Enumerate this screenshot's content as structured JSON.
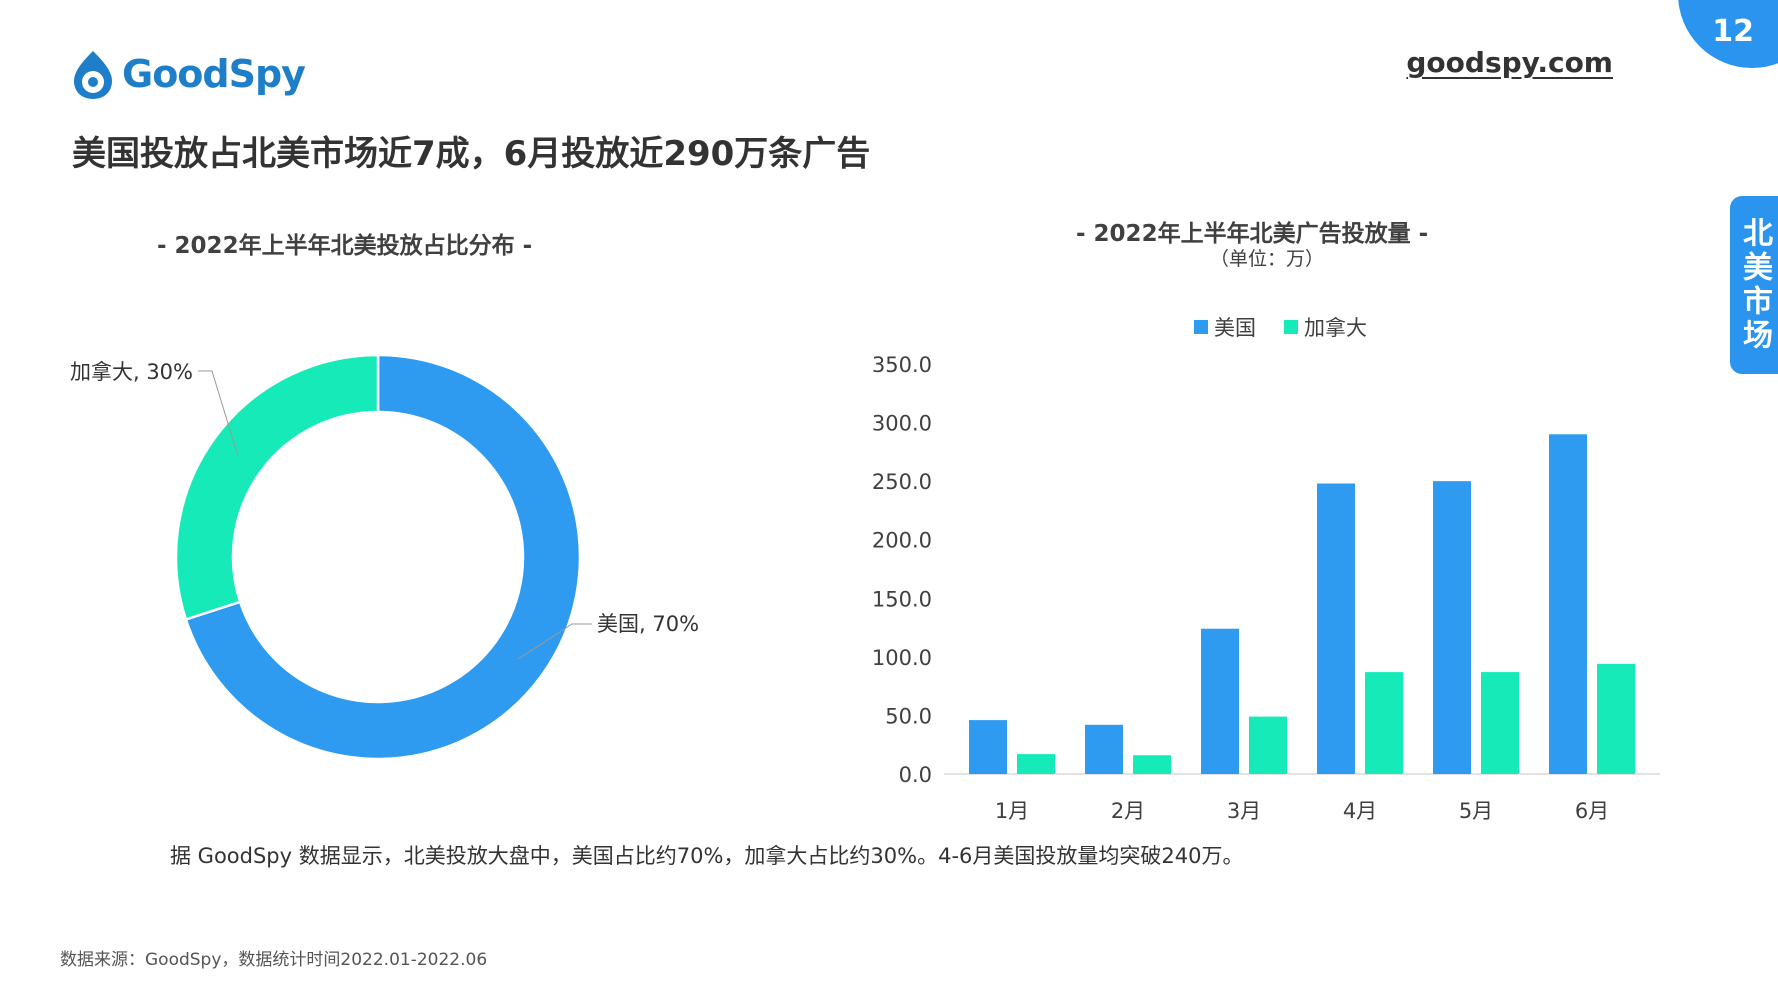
{
  "header": {
    "brand": "GoodSpy",
    "site_link": "goodspy.com",
    "page_number": "12",
    "side_tab": "北美市场",
    "headline": "美国投放占北美市场近7成，6月投放近290万条广告"
  },
  "colors": {
    "us": "#2e9bf0",
    "canada": "#16eab8",
    "accent": "#2a94ee"
  },
  "chart_data": [
    {
      "type": "pie",
      "title": "- 2022年上半年北美投放占比分布 -",
      "donut": true,
      "slices": [
        {
          "name": "美国",
          "label": "美国, 70%",
          "value": 70
        },
        {
          "name": "加拿大",
          "label": "加拿大, 30%",
          "value": 30
        }
      ]
    },
    {
      "type": "bar",
      "title": "- 2022年上半年北美广告投放量 -",
      "subtitle": "（单位：万）",
      "categories": [
        "1月",
        "2月",
        "3月",
        "4月",
        "5月",
        "6月"
      ],
      "series": [
        {
          "name": "美国",
          "values": [
            46,
            42,
            124,
            248,
            250,
            290
          ]
        },
        {
          "name": "加拿大",
          "values": [
            17,
            16,
            49,
            87,
            87,
            94
          ]
        }
      ],
      "ylim": [
        0,
        350
      ],
      "yticks": [
        "0.0",
        "50.0",
        "100.0",
        "150.0",
        "200.0",
        "250.0",
        "300.0",
        "350.0"
      ],
      "legend": "top",
      "grid": false
    }
  ],
  "summary": "据 GoodSpy 数据显示，北美投放大盘中，美国占比约70%，加拿大占比约30%。4-6月美国投放量均突破240万。",
  "source": "数据来源：GoodSpy，数据统计时间2022.01-2022.06"
}
